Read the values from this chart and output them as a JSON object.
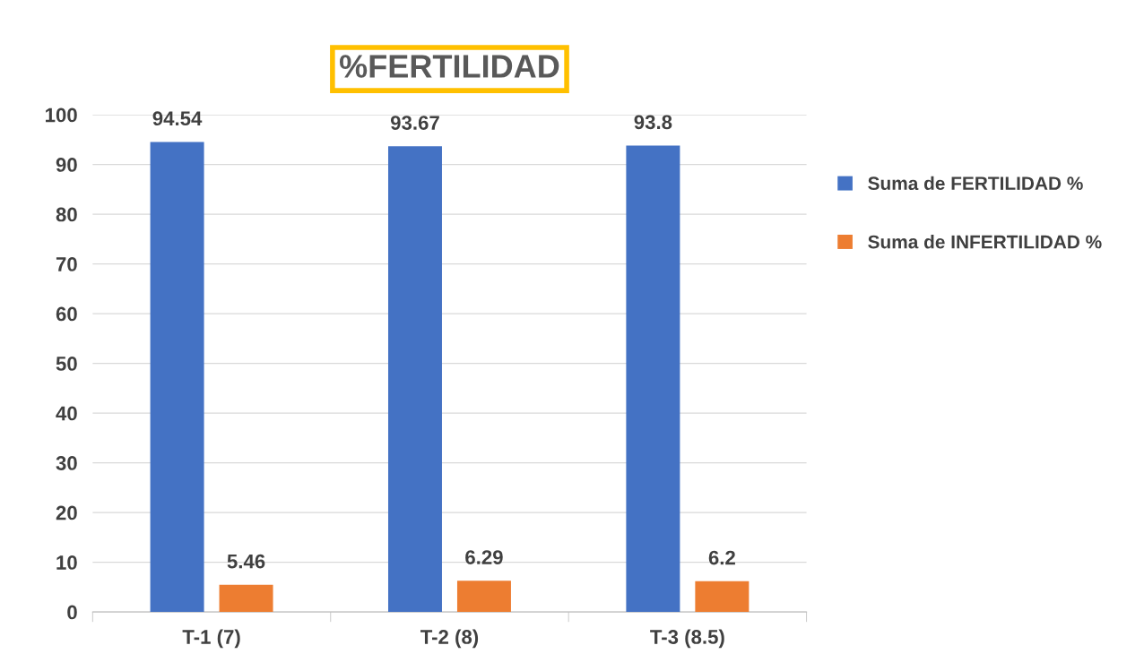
{
  "chart_data": {
    "type": "bar",
    "title": "%FERTILIDAD",
    "categories": [
      "T-1 (7)",
      "T-2 (8)",
      "T-3 (8.5)"
    ],
    "series": [
      {
        "name": "Suma de FERTILIDAD %",
        "color": "#4472c4",
        "values": [
          94.54,
          93.67,
          93.8
        ]
      },
      {
        "name": "Suma de INFERTILIDAD %",
        "color": "#ed7d31",
        "values": [
          5.46,
          6.29,
          6.2
        ]
      }
    ],
    "ylim": [
      0,
      100
    ],
    "yticks": [
      0,
      10,
      20,
      30,
      40,
      50,
      60,
      70,
      80,
      90,
      100
    ],
    "grid": "y",
    "legend": "right",
    "data_labels": true
  }
}
